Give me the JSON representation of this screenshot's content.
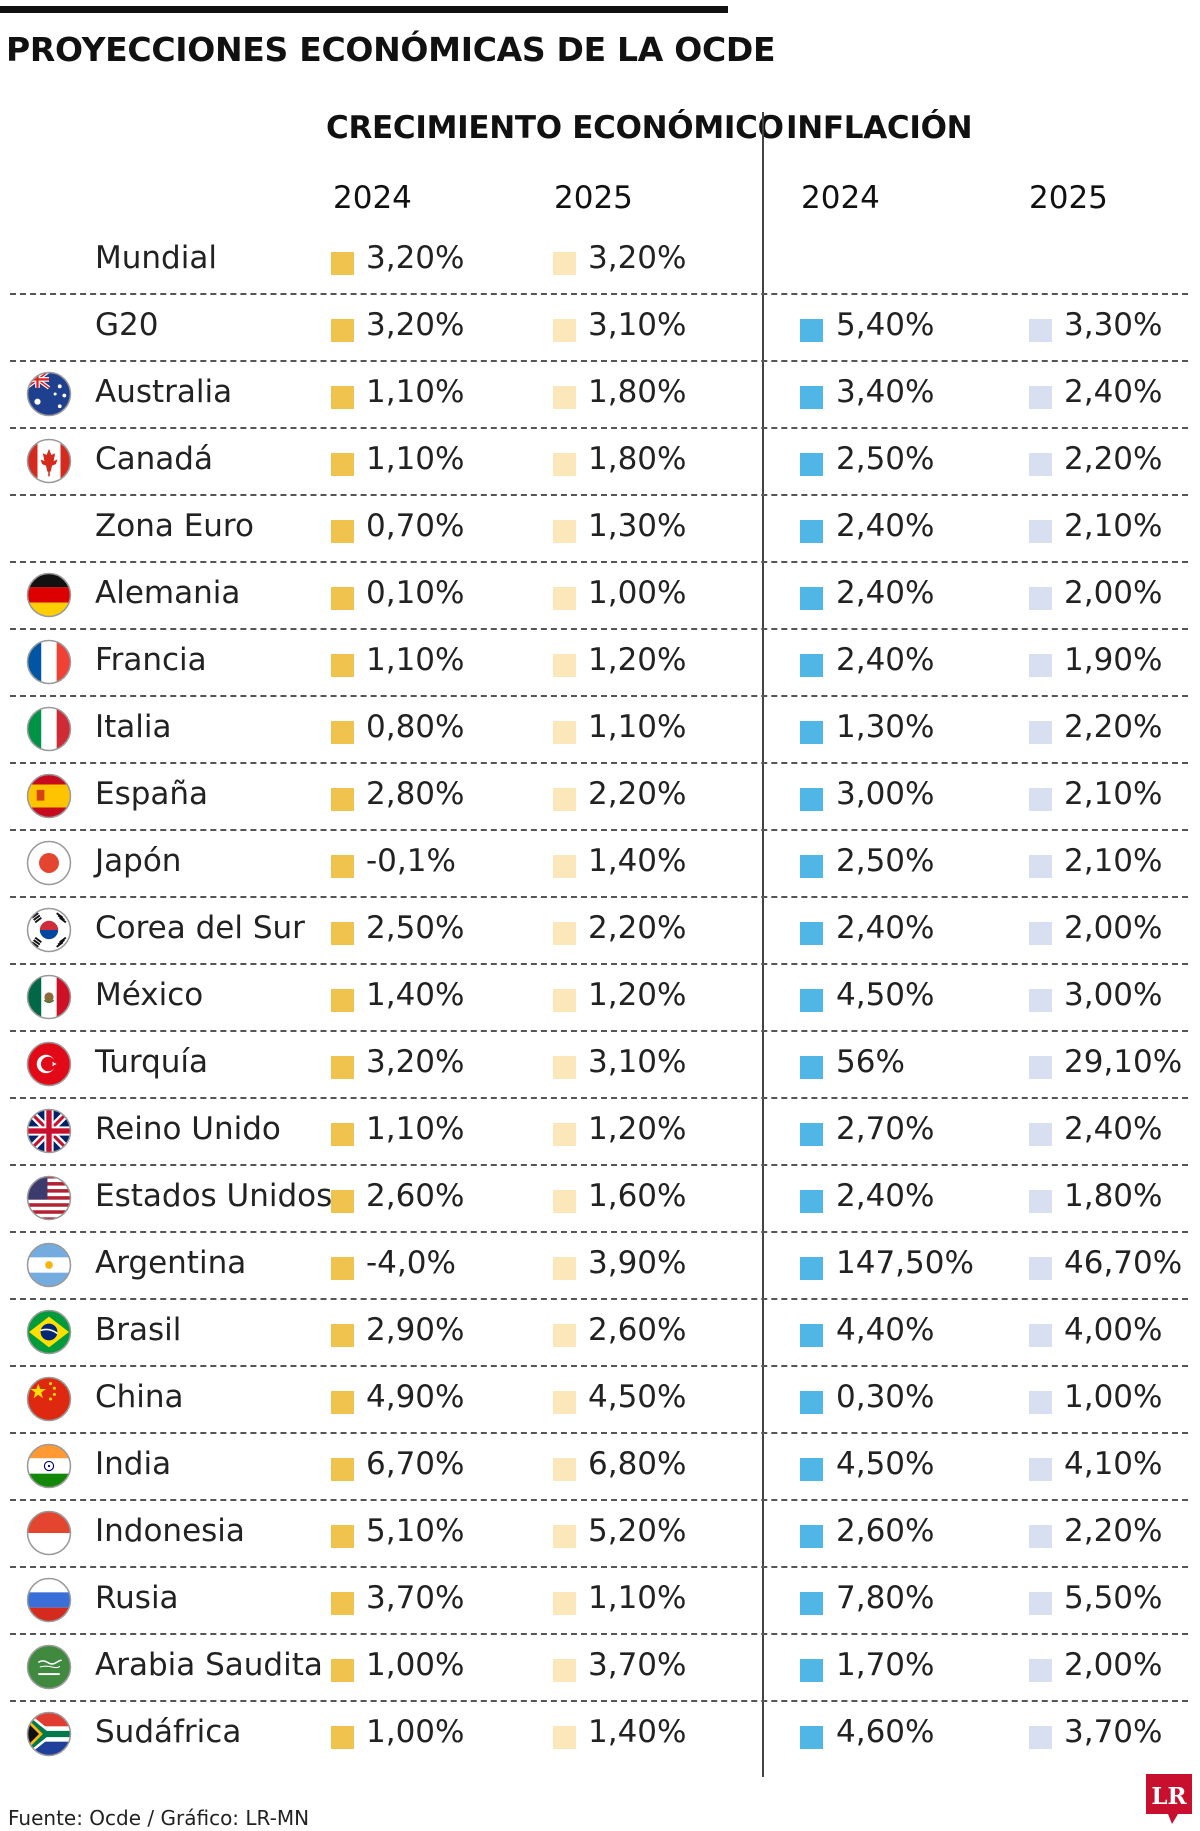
{
  "title": "PROYECCIONES ECONÓMICAS DE LA OCDE",
  "headers": {
    "growth": "CRECIMIENTO ECONÓMICO",
    "inflation": "INFLACIÓN",
    "years": [
      "2024",
      "2025",
      "2024",
      "2025"
    ]
  },
  "colors": {
    "growth_2024": "#f0c34f",
    "growth_2025": "#fbe7ba",
    "inflation_2024": "#4fb6e6",
    "inflation_2025": "#d7dff0",
    "logo": "#c8102e"
  },
  "source": "Fuente: Ocde / Gráfico: LR-MN",
  "logo_text": "LR",
  "chart_data": {
    "type": "table",
    "title": "PROYECCIONES ECONÓMICAS DE LA OCDE",
    "columns": [
      "CRECIMIENTO ECONÓMICO 2024",
      "CRECIMIENTO ECONÓMICO 2025",
      "INFLACIÓN 2024",
      "INFLACIÓN 2025"
    ],
    "rows": [
      {
        "name": "Mundial",
        "flag": "",
        "values": [
          "3,20%",
          "3,20%",
          "",
          ""
        ]
      },
      {
        "name": "G20",
        "flag": "",
        "values": [
          "3,20%",
          "3,10%",
          "5,40%",
          "3,30%"
        ]
      },
      {
        "name": "Australia",
        "flag": "australia-flag-icon",
        "values": [
          "1,10%",
          "1,80%",
          "3,40%",
          "2,40%"
        ]
      },
      {
        "name": "Canadá",
        "flag": "canada-flag-icon",
        "values": [
          "1,10%",
          "1,80%",
          "2,50%",
          "2,20%"
        ]
      },
      {
        "name": "Zona Euro",
        "flag": "",
        "values": [
          "0,70%",
          "1,30%",
          "2,40%",
          "2,10%"
        ]
      },
      {
        "name": "Alemania",
        "flag": "germany-flag-icon",
        "values": [
          "0,10%",
          "1,00%",
          "2,40%",
          "2,00%"
        ]
      },
      {
        "name": "Francia",
        "flag": "france-flag-icon",
        "values": [
          "1,10%",
          "1,20%",
          "2,40%",
          "1,90%"
        ]
      },
      {
        "name": "Italia",
        "flag": "italy-flag-icon",
        "values": [
          "0,80%",
          "1,10%",
          "1,30%",
          "2,20%"
        ]
      },
      {
        "name": "España",
        "flag": "spain-flag-icon",
        "values": [
          "2,80%",
          "2,20%",
          "3,00%",
          "2,10%"
        ]
      },
      {
        "name": "Japón",
        "flag": "japan-flag-icon",
        "values": [
          "-0,1%",
          "1,40%",
          "2,50%",
          "2,10%"
        ]
      },
      {
        "name": "Corea del Sur",
        "flag": "south-korea-flag-icon",
        "values": [
          "2,50%",
          "2,20%",
          "2,40%",
          "2,00%"
        ]
      },
      {
        "name": "México",
        "flag": "mexico-flag-icon",
        "values": [
          "1,40%",
          "1,20%",
          "4,50%",
          "3,00%"
        ]
      },
      {
        "name": "Turquía",
        "flag": "turkey-flag-icon",
        "values": [
          "3,20%",
          "3,10%",
          "56%",
          "29,10%"
        ]
      },
      {
        "name": "Reino Unido",
        "flag": "uk-flag-icon",
        "values": [
          "1,10%",
          "1,20%",
          "2,70%",
          "2,40%"
        ]
      },
      {
        "name": "Estados Unidos",
        "flag": "usa-flag-icon",
        "values": [
          "2,60%",
          "1,60%",
          "2,40%",
          "1,80%"
        ]
      },
      {
        "name": "Argentina",
        "flag": "argentina-flag-icon",
        "values": [
          "-4,0%",
          "3,90%",
          "147,50%",
          "46,70%"
        ]
      },
      {
        "name": "Brasil",
        "flag": "brazil-flag-icon",
        "values": [
          "2,90%",
          "2,60%",
          "4,40%",
          "4,00%"
        ]
      },
      {
        "name": "China",
        "flag": "china-flag-icon",
        "values": [
          "4,90%",
          "4,50%",
          "0,30%",
          "1,00%"
        ]
      },
      {
        "name": "India",
        "flag": "india-flag-icon",
        "values": [
          "6,70%",
          "6,80%",
          "4,50%",
          "4,10%"
        ]
      },
      {
        "name": "Indonesia",
        "flag": "indonesia-flag-icon",
        "values": [
          "5,10%",
          "5,20%",
          "2,60%",
          "2,20%"
        ]
      },
      {
        "name": "Rusia",
        "flag": "russia-flag-icon",
        "values": [
          "3,70%",
          "1,10%",
          "7,80%",
          "5,50%"
        ]
      },
      {
        "name": "Arabia Saudita",
        "flag": "saudi-arabia-flag-icon",
        "values": [
          "1,00%",
          "3,70%",
          "1,70%",
          "2,00%"
        ]
      },
      {
        "name": "Sudáfrica",
        "flag": "south-africa-flag-icon",
        "values": [
          "1,00%",
          "1,40%",
          "4,60%",
          "3,70%"
        ]
      }
    ]
  }
}
